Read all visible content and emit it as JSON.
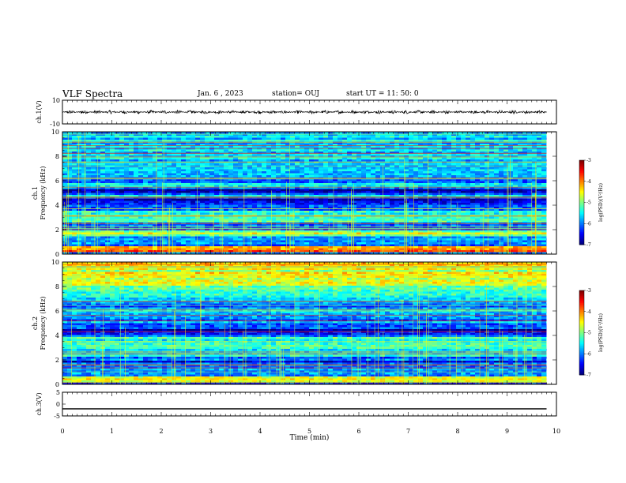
{
  "header": {
    "title": "VLF Spectra",
    "date": "Jan. 6 , 2023",
    "station": "station= OUJ",
    "start": "start UT = 11: 50: 0"
  },
  "chart_data": [
    {
      "type": "line",
      "name": "ch1-waveform",
      "ylabel": "ch.1(V)",
      "ylim": [
        -10,
        10
      ],
      "yticks": [
        "10",
        "-10"
      ],
      "xlim": [
        0,
        10
      ],
      "waveform_end_min": 9.8,
      "mean": 0.0,
      "amplitude": 1.5
    },
    {
      "type": "heatmap",
      "name": "ch1-spectrogram",
      "ylabel_channel": "ch.1",
      "ylabel": "Frequency (kHz)",
      "ylim": [
        0,
        10
      ],
      "yticks": [
        0,
        2,
        4,
        6,
        8,
        10
      ],
      "xlim": [
        0,
        10
      ],
      "data_end_min": 9.8,
      "colorbar": {
        "label": "log(PSD)(V²/Hz)",
        "range": [
          -7,
          -3
        ],
        "ticks": [
          "-3",
          "-4",
          "-5",
          "-6",
          "-7"
        ]
      },
      "dark_bands_khz": [
        [
          4.1,
          4.6
        ],
        [
          5.0,
          5.3
        ]
      ],
      "bright_bands_khz": [
        [
          0.2,
          0.6
        ],
        [
          1.4,
          2.0
        ]
      ]
    },
    {
      "type": "heatmap",
      "name": "ch2-spectrogram",
      "ylabel_channel": "ch.2",
      "ylabel": "Frequency (kHz)",
      "ylim": [
        0,
        10
      ],
      "yticks": [
        0,
        2,
        4,
        6,
        8,
        10
      ],
      "xlim": [
        0,
        10
      ],
      "data_end_min": 9.8,
      "colorbar": {
        "label": "log(PSD)(V²/Hz)",
        "range": [
          -7,
          -3
        ],
        "ticks": [
          "-3",
          "-4",
          "-5",
          "-6",
          "-7"
        ]
      },
      "dark_bands_khz": [
        [
          4.0,
          4.5
        ],
        [
          1.7,
          2.0
        ]
      ],
      "bright_bands_khz": [
        [
          8.0,
          10.0
        ],
        [
          0.3,
          0.7
        ]
      ]
    },
    {
      "type": "line",
      "name": "ch3-waveform",
      "ylabel": "ch.3(V)",
      "ylim": [
        -5,
        5
      ],
      "yticks": [
        "5",
        "0",
        "-5"
      ],
      "xlim": [
        0,
        10
      ],
      "waveform_end_min": 9.8,
      "mean": -2.0,
      "amplitude": 0
    }
  ],
  "xaxis": {
    "label": "Time (min)",
    "ticks": [
      "0",
      "1",
      "2",
      "3",
      "4",
      "5",
      "6",
      "7",
      "8",
      "9",
      "10"
    ]
  }
}
